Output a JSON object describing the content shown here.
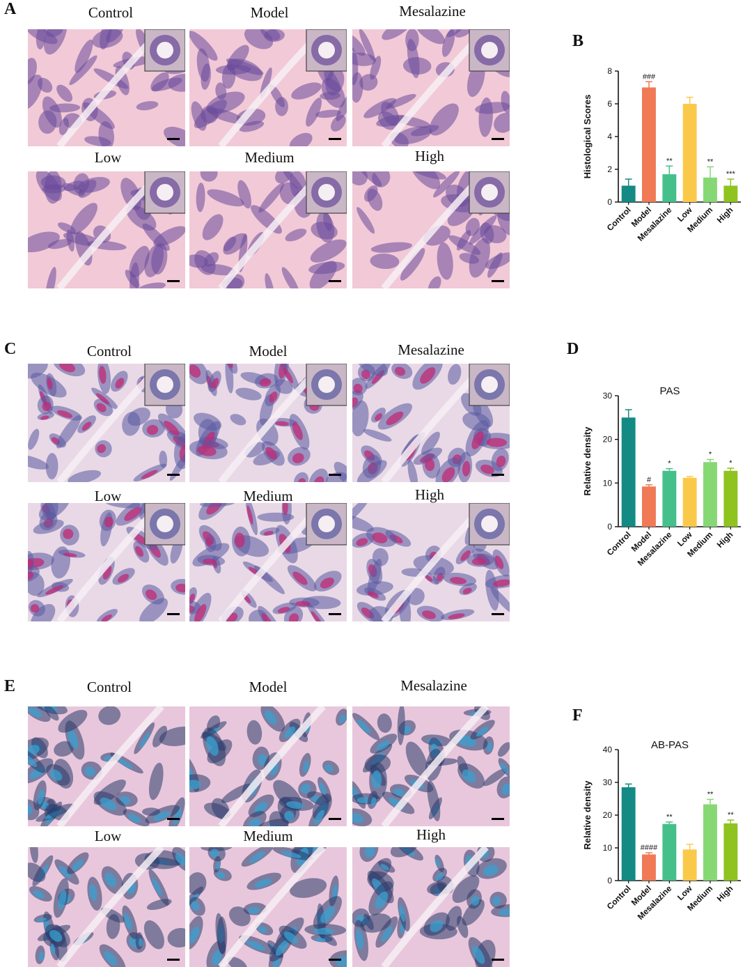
{
  "panels": {
    "A": {
      "letter": "A"
    },
    "B": {
      "letter": "B"
    },
    "C": {
      "letter": "C"
    },
    "D": {
      "letter": "D"
    },
    "E": {
      "letter": "E"
    },
    "F": {
      "letter": "F"
    }
  },
  "image_labels": {
    "A": [
      "Control",
      "Model",
      "Mesalazine",
      "Low",
      "Medium",
      "High"
    ],
    "C": [
      "Control",
      "Model",
      "Mesalazine",
      "Low",
      "Medium",
      "High"
    ],
    "E": [
      "Control",
      "Model",
      "Mesalazine",
      "Low",
      "Medium",
      "High"
    ]
  },
  "stain_colors": {
    "he_background": "#f2c9d6",
    "he_tissue": "#6a4a9a",
    "pas_background": "#e9d9e6",
    "pas_tissue": "#c02a74",
    "abpas_background": "#e8c7dc",
    "abpas_tissue": "#2a3a6a",
    "abpas_blue": "#3aa0d0"
  },
  "bar_colors": [
    "#138a84",
    "#ef7a55",
    "#45c08b",
    "#fbc94a",
    "#86d874",
    "#8fc31f"
  ],
  "chart_data": [
    {
      "type": "bar",
      "title": "",
      "xlabel": "",
      "ylabel": "Histological Scores",
      "ylim": [
        0,
        8
      ],
      "yticks": [
        "0",
        "2",
        "4",
        "6",
        "8"
      ],
      "categories": [
        "Control",
        "Model",
        "Mesalazine",
        "Low",
        "Medium",
        "High"
      ],
      "values": [
        1.0,
        7.0,
        1.7,
        6.0,
        1.5,
        1.0
      ],
      "errors": [
        0.4,
        0.35,
        0.5,
        0.4,
        0.65,
        0.4
      ],
      "annotations": [
        "",
        "###",
        "**",
        "",
        "**",
        "***"
      ],
      "grid": false
    },
    {
      "type": "bar",
      "title": "PAS",
      "xlabel": "",
      "ylabel": "Relative density",
      "ylim": [
        0,
        30
      ],
      "yticks": [
        "0",
        "10",
        "20",
        "30"
      ],
      "categories": [
        "Control",
        "Model",
        "Mesalazine",
        "Low",
        "Medium",
        "High"
      ],
      "values": [
        25.0,
        9.2,
        12.8,
        11.2,
        14.8,
        12.8
      ],
      "errors": [
        1.8,
        0.4,
        0.5,
        0.3,
        0.6,
        0.6
      ],
      "annotations": [
        "",
        "#",
        "*",
        "",
        "*",
        "*"
      ],
      "grid": false
    },
    {
      "type": "bar",
      "title": "AB-PAS",
      "xlabel": "",
      "ylabel": "Relative density",
      "ylim": [
        0,
        40
      ],
      "yticks": [
        "0",
        "10",
        "20",
        "30",
        "40"
      ],
      "categories": [
        "Control",
        "Model",
        "Mesalazine",
        "Low",
        "Medium",
        "High"
      ],
      "values": [
        28.5,
        8.0,
        17.3,
        9.5,
        23.3,
        17.5
      ],
      "errors": [
        1.0,
        0.5,
        0.6,
        1.6,
        1.5,
        1.0
      ],
      "annotations": [
        "",
        "####",
        "**",
        "",
        "**",
        "**"
      ],
      "grid": false
    }
  ]
}
